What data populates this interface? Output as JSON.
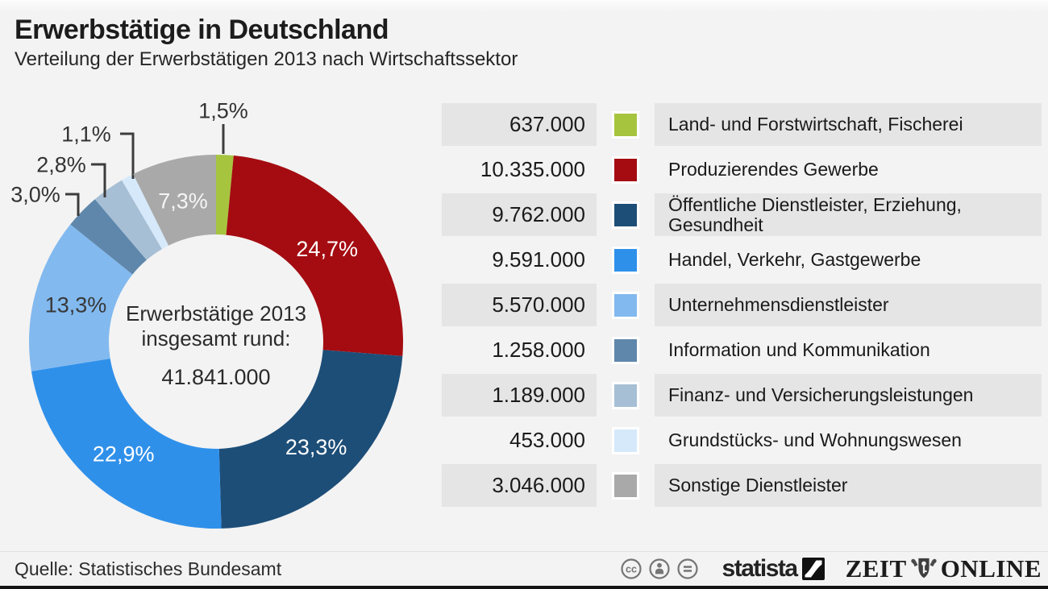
{
  "header": {
    "title": "Erwerbstätige in Deutschland",
    "subtitle": "Verteilung der Erwerbstätigen 2013 nach Wirtschaftssektor"
  },
  "chart_data": {
    "type": "pie",
    "donut": true,
    "title": "Erwerbstätige in Deutschland",
    "subtitle": "Verteilung der Erwerbstätigen 2013 nach Wirtschaftssektor",
    "start_angle_deg": 0,
    "direction": "clockwise",
    "center_label": {
      "line1": "Erwerbstätige 2013",
      "line2": "insgesamt rund:",
      "total": "41.841.000"
    },
    "segments": [
      {
        "label": "Land- und Forstwirtschaft, Fischerei",
        "value": 637000,
        "value_text": "637.000",
        "percent": 1.5,
        "percent_text": "1,5%",
        "color": "#a7c43f",
        "label_style": "callout"
      },
      {
        "label": "Produzierendes Gewerbe",
        "value": 10335000,
        "value_text": "10.335.000",
        "percent": 24.7,
        "percent_text": "24,7%",
        "color": "#a40c11",
        "label_style": "inside",
        "label_color": "#ffffff"
      },
      {
        "label": "Öffentliche Dienstleister, Erziehung, Gesundheit",
        "value": 9762000,
        "value_text": "9.762.000",
        "percent": 23.3,
        "percent_text": "23,3%",
        "color": "#1d4e78",
        "label_style": "inside",
        "label_color": "#ffffff"
      },
      {
        "label": "Handel, Verkehr, Gastgewerbe",
        "value": 9591000,
        "value_text": "9.591.000",
        "percent": 22.9,
        "percent_text": "22,9%",
        "color": "#2f90ea",
        "label_style": "inside",
        "label_color": "#ffffff"
      },
      {
        "label": "Unternehmensdienstleister",
        "value": 5570000,
        "value_text": "5.570.000",
        "percent": 13.3,
        "percent_text": "13,3%",
        "color": "#82b9ef",
        "label_style": "inside",
        "label_color": "#383838"
      },
      {
        "label": "Information und Kommunikation",
        "value": 1258000,
        "value_text": "1.258.000",
        "percent": 3.0,
        "percent_text": "3,0%",
        "color": "#5f87ac",
        "label_style": "callout"
      },
      {
        "label": "Finanz- und Versicherungsleistungen",
        "value": 1189000,
        "value_text": "1.189.000",
        "percent": 2.8,
        "percent_text": "2,8%",
        "color": "#a7bfd5",
        "label_style": "callout"
      },
      {
        "label": "Grundstücks- und Wohnungswesen",
        "value": 453000,
        "value_text": "453.000",
        "percent": 1.1,
        "percent_text": "1,1%",
        "color": "#d6e9fb",
        "label_style": "callout"
      },
      {
        "label": "Sonstige Dienstleister",
        "value": 3046000,
        "value_text": "3.046.000",
        "percent": 7.3,
        "percent_text": "7,3%",
        "color": "#a9a9a9",
        "label_style": "inside",
        "label_color": "#f5f5f5"
      }
    ]
  },
  "footer": {
    "source": "Quelle: Statistisches Bundesamt",
    "cc_badges": [
      "cc",
      "by",
      "nd"
    ],
    "statista_label": "statista",
    "zeit_left": "ZEIT",
    "zeit_right": "ONLINE"
  }
}
